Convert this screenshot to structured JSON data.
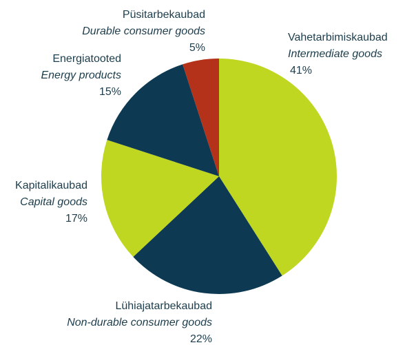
{
  "chart_data": {
    "type": "pie",
    "categories": [
      "Vahetarbimiskaubad",
      "Lühiajatarbekaubad",
      "Kapitalikaubad",
      "Energiatooted",
      "Püsitarbekaubad"
    ],
    "categories_en": [
      "Intermediate goods",
      "Non-durable consumer goods",
      "Capital goods",
      "Energy products",
      "Durable consumer goods"
    ],
    "values": [
      41,
      22,
      17,
      15,
      5
    ],
    "value_labels": [
      "41%",
      "22%",
      "17%",
      "15%",
      "5%"
    ],
    "colors": [
      "#c0d722",
      "#0d3a52",
      "#c0d722",
      "#0d3a52",
      "#b5321a"
    ]
  }
}
